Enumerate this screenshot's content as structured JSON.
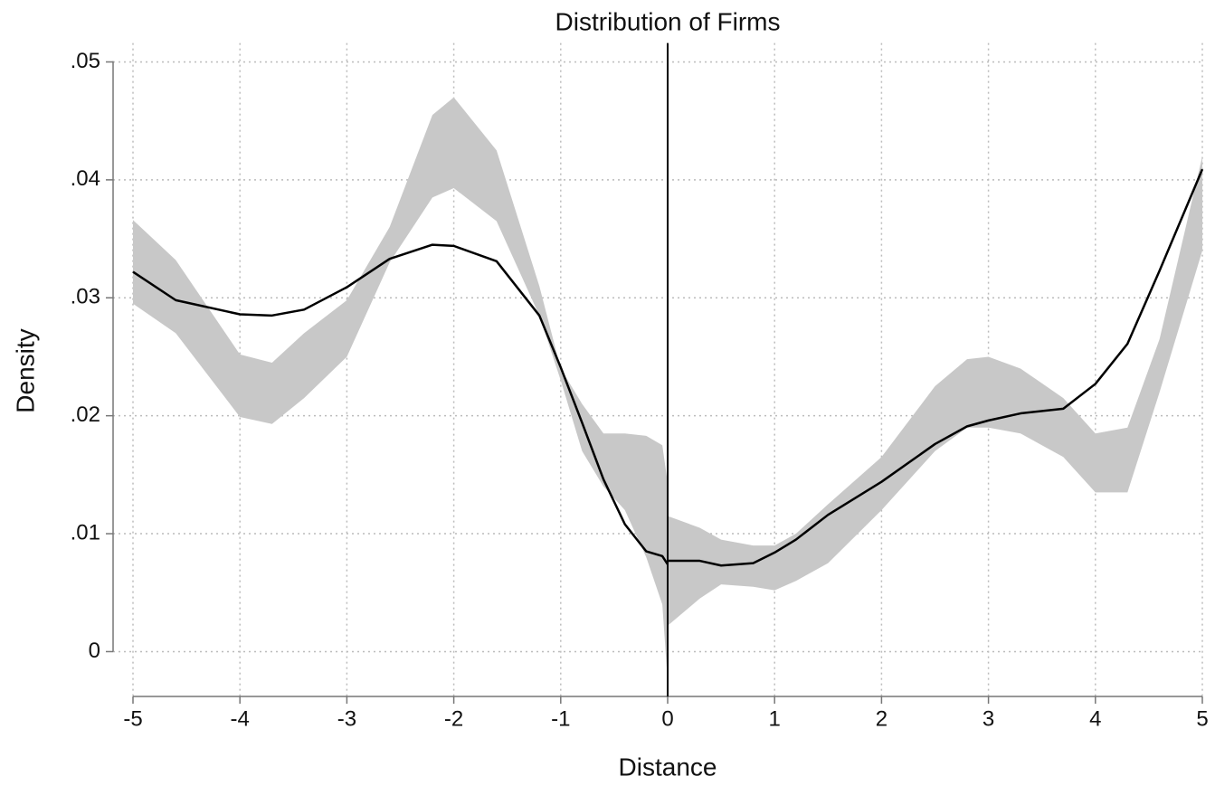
{
  "chart_data": {
    "type": "line",
    "title": "Distribution of Firms",
    "x_label": "Distance",
    "y_label": "Density",
    "x": [
      -5,
      -4.6,
      -4,
      -3.7,
      -3.4,
      -3,
      -2.6,
      -2.2,
      -2,
      -1.6,
      -1.2,
      -1,
      -0.8,
      -0.6,
      -0.4,
      -0.2,
      -0.05,
      0,
      null,
      0,
      0.3,
      0.5,
      0.8,
      1,
      1.2,
      1.5,
      2,
      2.5,
      2.8,
      3,
      3.3,
      3.7,
      4,
      4.3,
      4.6,
      5
    ],
    "series": [
      {
        "color": "#000000",
        "values": [
          0.0322,
          0.0298,
          0.0286,
          0.0285,
          0.029,
          0.0309,
          0.0333,
          0.0345,
          0.0344,
          0.0331,
          0.0285,
          0.0241,
          0.0194,
          0.0146,
          0.0108,
          0.0085,
          0.0081,
          0.0074,
          null,
          0.0077,
          0.0077,
          0.0073,
          0.0075,
          0.0084,
          0.0095,
          0.0116,
          0.0144,
          0.0176,
          0.0191,
          0.0196,
          0.0202,
          0.0206,
          0.0227,
          0.0261,
          0.0323,
          0.0409
        ]
      }
    ],
    "band": {
      "color": "#c8c8c8",
      "upper": [
        0.0366,
        0.0332,
        0.0252,
        0.0245,
        0.027,
        0.0298,
        0.036,
        0.0455,
        0.047,
        0.0425,
        0.031,
        0.024,
        0.021,
        0.0185,
        0.0185,
        0.0183,
        0.0175,
        0.0143,
        null,
        0.0115,
        0.0105,
        0.0095,
        0.009,
        0.009,
        0.01,
        0.0125,
        0.0165,
        0.0225,
        0.0248,
        0.025,
        0.024,
        0.0215,
        0.0185,
        0.019,
        0.0265,
        0.042
      ],
      "lower": [
        0.0295,
        0.027,
        0.0199,
        0.0193,
        0.0215,
        0.025,
        0.033,
        0.0385,
        0.0393,
        0.0365,
        0.0285,
        0.023,
        0.017,
        0.014,
        0.012,
        0.008,
        0.004,
        -0.0025,
        null,
        0.0022,
        0.0045,
        0.0057,
        0.0055,
        0.0052,
        0.006,
        0.0075,
        0.012,
        0.017,
        0.019,
        0.019,
        0.0185,
        0.0165,
        0.0135,
        0.0135,
        0.022,
        0.034
      ]
    },
    "vline": 0,
    "xlim": [
      -5,
      5
    ],
    "ylim": [
      -0.0038,
      0.0516
    ],
    "xticks": [
      -5,
      -4,
      -3,
      -2,
      -1,
      0,
      1,
      2,
      3,
      4,
      5
    ],
    "yticks": [
      0,
      {
        "value": 0.01,
        "label": ".01"
      },
      {
        "value": 0.02,
        "label": ".02"
      },
      {
        "value": 0.03,
        "label": ".03"
      },
      {
        "value": 0.04,
        "label": ".04"
      },
      {
        "value": 0.05,
        "label": ".05"
      }
    ],
    "grid": true
  }
}
